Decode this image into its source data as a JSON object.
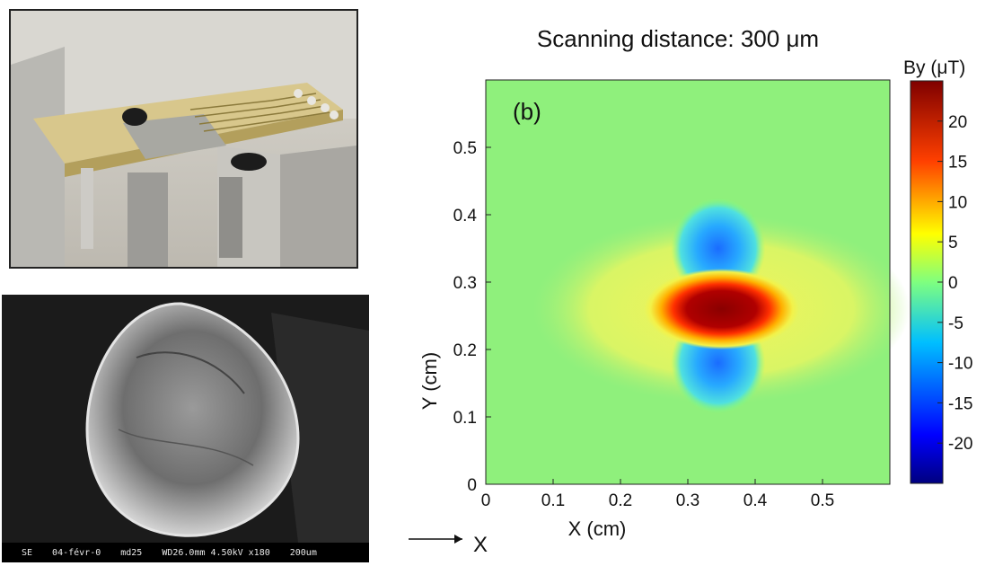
{
  "photo_top": {
    "description_name": "sensor-probe-photo"
  },
  "photo_bottom": {
    "footer": [
      "SE",
      "04-févr-0",
      "md25",
      "WD26.0mm 4.50kV x180",
      "200um"
    ]
  },
  "chart_data": {
    "type": "heatmap",
    "title": "Scanning distance: 300 μm",
    "panel_label": "(b)",
    "xlabel": "X (cm)",
    "ylabel": "Y (cm)",
    "xlim": [
      0,
      0.6
    ],
    "ylim": [
      0,
      0.6
    ],
    "x_ticks": [
      "0",
      "0.1",
      "0.2",
      "0.3",
      "0.4",
      "0.5"
    ],
    "y_ticks": [
      "0",
      "0.1",
      "0.2",
      "0.3",
      "0.4",
      "0.5"
    ],
    "colorbar_label": "By (μT)",
    "colorbar_ticks": [
      "20",
      "15",
      "10",
      "5",
      "0",
      "-5",
      "-10",
      "-15",
      "-20"
    ],
    "colorbar_range": [
      -25,
      25
    ],
    "colormap": "jet",
    "features": [
      {
        "kind": "positive-peak",
        "x": 0.35,
        "y": 0.26,
        "value": 25
      },
      {
        "kind": "negative-lobe",
        "x": 0.345,
        "y": 0.35,
        "value": -10
      },
      {
        "kind": "negative-lobe",
        "x": 0.345,
        "y": 0.18,
        "value": -14
      }
    ]
  },
  "axis_indicator": {
    "label": "X"
  }
}
